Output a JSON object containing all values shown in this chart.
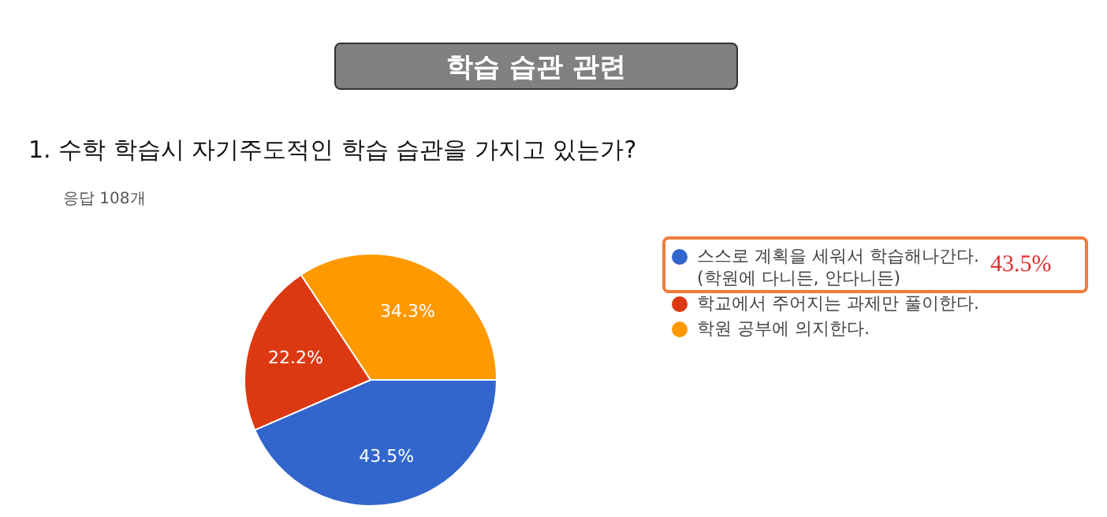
{
  "chart_data": {
    "type": "pie",
    "title": "학습 습관 관련",
    "subtitle": "1. 수학 학습시 자기주도적인 학습 습관을 가지고 있는가?",
    "annotations": [
      "응답 108개",
      "43.5%"
    ],
    "categories": [
      "스스로 계획을 세워서 학습해나간다.(학원에 다니든, 안다니든)",
      "학교에서 주어지는 과제만 풀이한다.",
      "학원 공부에 의지한다."
    ],
    "values": [
      43.5,
      22.2,
      34.3
    ],
    "colors": [
      "#3366cc",
      "#dc3912",
      "#ff9900"
    ],
    "value_labels": [
      "43.5%",
      "22.2%",
      "34.3%"
    ],
    "legend": "right"
  }
}
